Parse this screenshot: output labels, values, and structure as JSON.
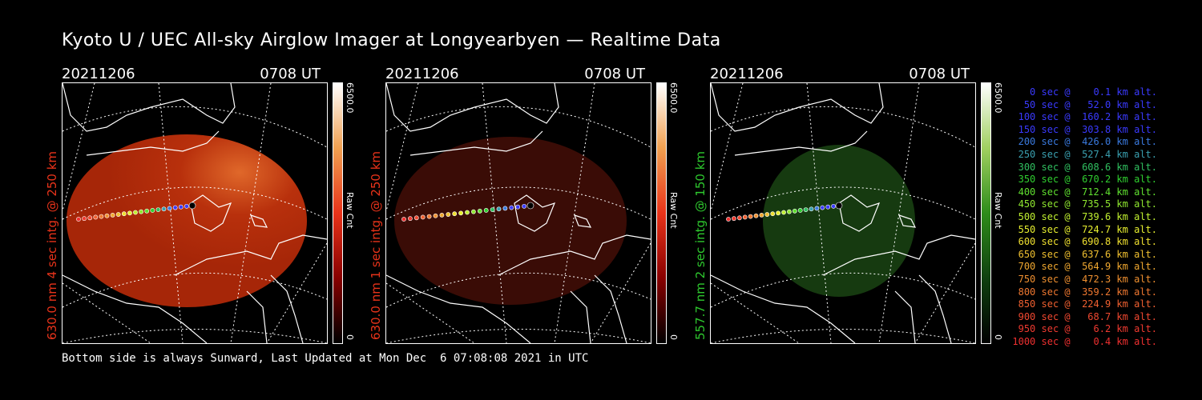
{
  "title": "Kyoto U / UEC All-sky Airglow Imager at Longyearbyen — Realtime Data",
  "panels": [
    {
      "date": "20211206",
      "time": "0708 UT",
      "label": "630.0 nm 4 sec intg. @ 250 km",
      "label_color": "#e8331a",
      "cbar_max": "6500.0",
      "cbar_min": "0",
      "cbar_unit": "Raw Cnt",
      "cbar_color": "#e8331a",
      "fill": "#b02a0a"
    },
    {
      "date": "20211206",
      "time": "0708 UT",
      "label": "630.0 nm 1 sec intg. @ 250 km",
      "label_color": "#e8331a",
      "cbar_max": "6500.0",
      "cbar_min": "0",
      "cbar_unit": "Raw Cnt",
      "cbar_color": "#e8331a",
      "fill": "#3a0c06"
    },
    {
      "date": "20211206",
      "time": "0708 UT",
      "label": "557.7 nm 2 sec intg. @ 150 km",
      "label_color": "#2ec82e",
      "cbar_max": "6500.0",
      "cbar_min": "0",
      "cbar_unit": "Raw Cnt",
      "cbar_color": "#2e8c1a",
      "fill": "#163a10"
    }
  ],
  "legend": [
    {
      "text": "   0 sec @    0.1 km alt.",
      "color": "#3a3aff"
    },
    {
      "text": "  50 sec @   52.0 km alt.",
      "color": "#3a3aff"
    },
    {
      "text": " 100 sec @  160.2 km alt.",
      "color": "#3a3aff"
    },
    {
      "text": " 150 sec @  303.8 km alt.",
      "color": "#3a3aff"
    },
    {
      "text": " 200 sec @  426.0 km alt.",
      "color": "#3a7adf"
    },
    {
      "text": " 250 sec @  527.4 km alt.",
      "color": "#3aa0b0"
    },
    {
      "text": " 300 sec @  608.6 km alt.",
      "color": "#30c060"
    },
    {
      "text": " 350 sec @  670.2 km alt.",
      "color": "#30d030"
    },
    {
      "text": " 400 sec @  712.4 km alt.",
      "color": "#60e030"
    },
    {
      "text": " 450 sec @  735.5 km alt.",
      "color": "#90e830"
    },
    {
      "text": " 500 sec @  739.6 km alt.",
      "color": "#c0f030"
    },
    {
      "text": " 550 sec @  724.7 km alt.",
      "color": "#e8f030"
    },
    {
      "text": " 600 sec @  690.8 km alt.",
      "color": "#f0e030"
    },
    {
      "text": " 650 sec @  637.6 km alt.",
      "color": "#f0c030"
    },
    {
      "text": " 700 sec @  564.9 km alt.",
      "color": "#f0a830"
    },
    {
      "text": " 750 sec @  472.3 km alt.",
      "color": "#f09030"
    },
    {
      "text": " 800 sec @  359.2 km alt.",
      "color": "#f07830"
    },
    {
      "text": " 850 sec @  224.9 km alt.",
      "color": "#f06030"
    },
    {
      "text": " 900 sec @   68.7 km alt.",
      "color": "#f04830"
    },
    {
      "text": " 950 sec @    6.2 km alt.",
      "color": "#f03a30"
    },
    {
      "text": "1000 sec @    0.4 km alt.",
      "color": "#f03030"
    }
  ],
  "footer": "Bottom side is always Sunward, Last Updated at Mon Dec  6 07:08:08 2021 in UTC",
  "colors": {
    "background": "#000000",
    "text": "#ffffff"
  }
}
